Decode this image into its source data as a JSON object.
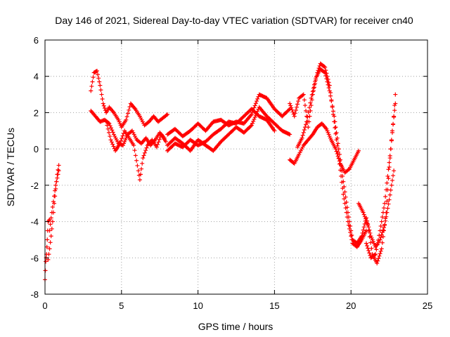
{
  "chart_data": {
    "type": "scatter",
    "title": "Day 146 of 2021, Sidereal Day-to-day VTEC variation (SDTVAR) for receiver cn40",
    "xlabel": "GPS time / hours",
    "ylabel": "SDTVAR / TECUs",
    "xlim": [
      0,
      25
    ],
    "ylim": [
      -8,
      6
    ],
    "xticks": [
      "0",
      "5",
      "10",
      "15",
      "20",
      "25"
    ],
    "yticks": [
      "-8",
      "-6",
      "-4",
      "-2",
      "0",
      "2",
      "4",
      "6"
    ],
    "grid": true,
    "marker": "plus",
    "color": "#ff0000",
    "series": [
      {
        "x": [
          0.0,
          0.05,
          0.1,
          0.15,
          0.2,
          0.3
        ],
        "y": [
          -7.2,
          -6.2,
          -5.8,
          -5.0,
          -4.0,
          -3.9
        ]
      },
      {
        "x": [
          0.2,
          0.3,
          0.4,
          0.5,
          0.6,
          0.7,
          0.8,
          0.9
        ],
        "y": [
          -6.1,
          -5.5,
          -4.8,
          -4.0,
          -3.0,
          -2.2,
          -1.4,
          -0.9
        ]
      },
      {
        "x": [
          0.3,
          0.4,
          0.5,
          0.6,
          0.7,
          0.8,
          0.9
        ],
        "y": [
          -4.5,
          -3.8,
          -3.2,
          -2.6,
          -2.0,
          -1.6,
          -1.2
        ]
      },
      {
        "x": [
          3.0,
          3.2,
          3.4,
          3.6,
          3.8,
          4.0,
          4.2,
          4.5,
          4.8,
          5.0,
          5.3,
          5.6,
          5.9,
          6.2,
          6.5,
          6.8,
          7.1,
          7.4,
          7.7,
          8.0
        ],
        "y": [
          3.2,
          4.2,
          4.3,
          3.5,
          2.5,
          2.0,
          2.3,
          2.0,
          1.6,
          1.2,
          1.6,
          2.5,
          2.2,
          1.8,
          1.3,
          1.5,
          1.8,
          1.5,
          1.7,
          1.9
        ]
      },
      {
        "x": [
          3.0,
          3.3,
          3.6,
          3.9,
          4.2,
          4.5,
          4.8,
          5.1,
          5.4,
          5.7,
          6.0,
          6.3,
          6.6,
          6.9,
          7.2,
          7.5,
          7.8
        ],
        "y": [
          2.1,
          1.8,
          1.5,
          1.6,
          1.4,
          0.8,
          0.3,
          0.2,
          0.8,
          1.0,
          0.5,
          0.3,
          0.6,
          0.2,
          0.5,
          0.9,
          0.6
        ]
      },
      {
        "x": [
          4.0,
          4.3,
          4.6,
          4.9,
          5.2,
          5.5,
          5.8,
          6.1,
          6.2,
          6.4,
          6.7,
          7.0,
          7.3,
          7.6,
          7.9
        ],
        "y": [
          1.5,
          0.5,
          -0.1,
          0.3,
          1.0,
          0.6,
          0.2,
          -1.2,
          -1.7,
          -0.5,
          0.2,
          0.5,
          0.1,
          0.8,
          0.4
        ]
      },
      {
        "x": [
          8.0,
          8.5,
          9.0,
          9.5,
          10.0,
          10.5,
          11.0,
          11.5,
          12.0,
          12.5,
          13.0,
          13.5,
          14.0,
          14.5,
          15.0,
          15.5,
          16.0
        ],
        "y": [
          0.8,
          1.1,
          0.7,
          1.0,
          1.4,
          1.0,
          1.5,
          1.6,
          1.3,
          1.5,
          1.4,
          1.9,
          3.0,
          2.8,
          2.2,
          1.8,
          2.2
        ]
      },
      {
        "x": [
          8.0,
          8.5,
          9.0,
          9.5,
          10.0,
          10.5,
          11.0,
          11.5,
          12.0,
          12.5,
          13.0,
          13.5,
          14.0,
          14.5,
          15.0,
          15.5,
          16.0
        ],
        "y": [
          0.2,
          0.6,
          0.3,
          -0.1,
          0.5,
          0.2,
          -0.1,
          0.4,
          0.8,
          1.2,
          0.9,
          1.3,
          2.3,
          1.8,
          1.4,
          1.0,
          0.8
        ]
      },
      {
        "x": [
          8.0,
          8.5,
          9.0,
          9.5,
          10.0,
          10.5,
          11.0,
          11.5,
          12.0,
          12.5,
          13.0,
          13.5,
          14.0,
          14.5,
          15.0
        ],
        "y": [
          -0.1,
          0.3,
          0.1,
          0.5,
          0.2,
          0.4,
          0.8,
          1.1,
          1.5,
          1.4,
          1.8,
          2.2,
          1.8,
          1.6,
          1.0
        ]
      },
      {
        "x": [
          16.0,
          16.3,
          16.6,
          16.9,
          17.2,
          17.5,
          17.8,
          18.0,
          18.3,
          18.6,
          18.9,
          19.2,
          19.5,
          19.8,
          20.1,
          20.4,
          20.7,
          21.0
        ],
        "y": [
          2.5,
          1.8,
          2.8,
          3.0,
          1.2,
          3.0,
          4.2,
          4.7,
          4.5,
          3.5,
          1.5,
          -0.5,
          -2.5,
          -4.0,
          -5.2,
          -5.4,
          -5.0,
          -4.5
        ]
      },
      {
        "x": [
          16.0,
          16.3,
          16.6,
          16.9,
          17.2,
          17.5,
          17.8,
          18.1,
          18.4,
          18.7,
          19.0,
          19.3,
          19.6,
          19.9,
          20.2,
          20.5
        ],
        "y": [
          -0.6,
          -0.8,
          -0.3,
          0.2,
          0.5,
          0.8,
          1.2,
          1.4,
          1.1,
          0.5,
          0.0,
          -0.8,
          -1.3,
          -1.1,
          -0.6,
          -0.1
        ]
      },
      {
        "x": [
          16.5,
          16.8,
          17.1,
          17.4,
          17.7,
          18.0,
          18.3,
          18.6,
          18.9,
          19.2,
          19.5,
          19.8,
          20.1,
          20.4,
          20.7,
          21.0,
          21.3,
          21.6,
          21.9,
          22.2,
          22.5,
          22.8
        ],
        "y": [
          0.1,
          0.6,
          1.5,
          2.8,
          3.9,
          4.4,
          4.2,
          3.2,
          1.8,
          0.0,
          -1.8,
          -3.5,
          -5.0,
          -5.2,
          -4.8,
          -3.8,
          -4.8,
          -5.4,
          -5.0,
          -4.2,
          -2.8,
          -1.2
        ]
      },
      {
        "x": [
          20.5,
          20.8,
          21.1,
          21.4,
          21.7,
          22.0,
          22.3,
          22.5,
          22.7,
          22.9
        ],
        "y": [
          -3.0,
          -3.5,
          -4.2,
          -5.8,
          -6.3,
          -5.5,
          -3.5,
          -1.0,
          1.0,
          2.5
        ]
      },
      {
        "x": [
          21.0,
          21.3,
          21.6,
          21.9,
          22.2,
          22.4,
          22.6,
          22.8,
          22.9
        ],
        "y": [
          -5.2,
          -6.0,
          -5.8,
          -4.5,
          -3.0,
          -1.5,
          0.0,
          1.8,
          3.0
        ]
      }
    ]
  }
}
